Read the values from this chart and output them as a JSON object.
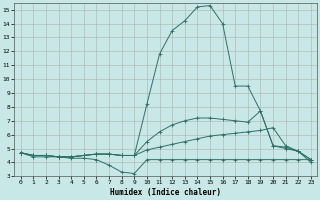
{
  "xlabel": "Humidex (Indice chaleur)",
  "bg_color": "#c8e8e8",
  "grid_color": "#b0b0b0",
  "line_color": "#2d7068",
  "xlim": [
    -0.5,
    23.5
  ],
  "ylim": [
    3,
    15.5
  ],
  "xticks": [
    0,
    1,
    2,
    3,
    4,
    5,
    6,
    7,
    8,
    9,
    10,
    11,
    12,
    13,
    14,
    15,
    16,
    17,
    18,
    19,
    20,
    21,
    22,
    23
  ],
  "yticks": [
    3,
    4,
    5,
    6,
    7,
    8,
    9,
    10,
    11,
    12,
    13,
    14,
    15
  ],
  "lines": [
    [
      4.7,
      4.4,
      4.4,
      4.4,
      4.3,
      4.3,
      4.2,
      3.8,
      3.3,
      3.2,
      4.2,
      4.2,
      4.2,
      4.2,
      4.2,
      4.2,
      4.2,
      4.2,
      4.2,
      4.2,
      4.2,
      4.2,
      4.2,
      4.2
    ],
    [
      4.7,
      4.5,
      4.5,
      4.4,
      4.4,
      4.5,
      4.6,
      4.6,
      4.5,
      4.5,
      4.9,
      5.1,
      5.3,
      5.5,
      5.7,
      5.9,
      6.0,
      6.1,
      6.2,
      6.3,
      6.5,
      5.2,
      4.8,
      4.2
    ],
    [
      4.7,
      4.5,
      4.5,
      4.4,
      4.4,
      4.5,
      4.6,
      4.6,
      4.5,
      4.5,
      5.5,
      6.2,
      6.7,
      7.0,
      7.2,
      7.2,
      7.1,
      7.0,
      6.9,
      7.7,
      5.2,
      5.1,
      4.8,
      4.2
    ],
    [
      4.7,
      4.5,
      4.5,
      4.4,
      4.4,
      4.5,
      4.6,
      4.6,
      4.5,
      4.5,
      8.2,
      11.8,
      13.5,
      14.2,
      15.2,
      15.3,
      14.0,
      9.5,
      9.5,
      7.7,
      5.2,
      5.0,
      4.8,
      4.0
    ]
  ]
}
